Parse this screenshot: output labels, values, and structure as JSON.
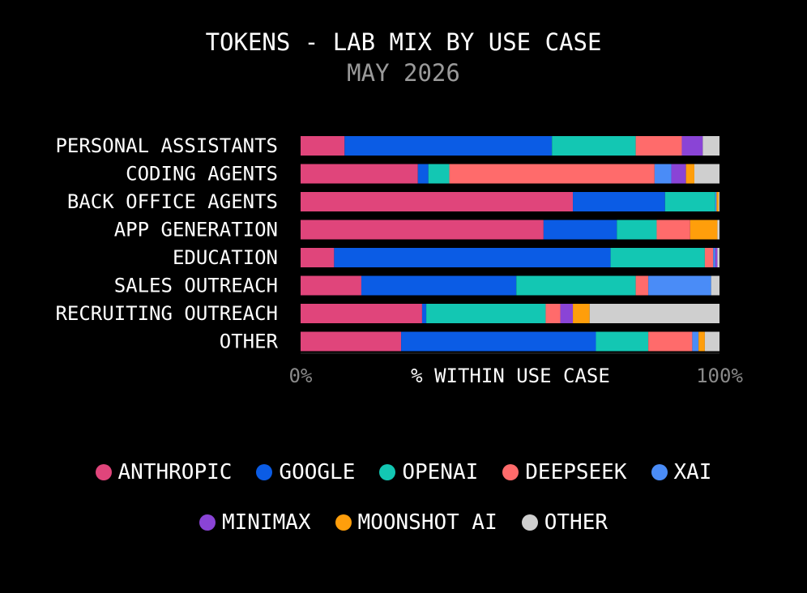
{
  "chart_data": {
    "type": "bar",
    "orientation": "horizontal",
    "stacked": true,
    "normalized": true,
    "title": "TOKENS - LAB MIX BY USE CASE",
    "subtitle": "MAY 2026",
    "xlabel": "% WITHIN USE CASE",
    "xlim": [
      0,
      100
    ],
    "x_ticks": [
      "0%",
      "100%"
    ],
    "categories": [
      "PERSONAL ASSISTANTS",
      "CODING AGENTS",
      "BACK OFFICE AGENTS",
      "APP GENERATION",
      "EDUCATION",
      "SALES OUTREACH",
      "RECRUITING OUTREACH",
      "OTHER"
    ],
    "series": [
      {
        "name": "ANTHROPIC",
        "color": "#e0457b",
        "values": [
          10.5,
          28.0,
          65.0,
          58.0,
          8.0,
          14.5,
          29.0,
          24.0
        ]
      },
      {
        "name": "GOOGLE",
        "color": "#0b5ce5",
        "values": [
          49.5,
          2.5,
          22.0,
          17.5,
          66.0,
          37.0,
          1.0,
          46.5
        ]
      },
      {
        "name": "OPENAI",
        "color": "#13c7b3",
        "values": [
          20.0,
          5.0,
          12.0,
          9.5,
          22.5,
          28.5,
          28.5,
          12.5
        ]
      },
      {
        "name": "DEEPSEEK",
        "color": "#ff6b6b",
        "values": [
          11.0,
          49.0,
          0.0,
          8.0,
          2.0,
          3.0,
          3.5,
          10.5
        ]
      },
      {
        "name": "XAI",
        "color": "#4a8cf7",
        "values": [
          0.0,
          4.0,
          0.3,
          0.0,
          0.5,
          15.0,
          0.0,
          1.5
        ]
      },
      {
        "name": "MINIMAX",
        "color": "#8a44d6",
        "values": [
          5.0,
          3.5,
          0.0,
          0.0,
          0.5,
          0.0,
          3.0,
          0.0
        ]
      },
      {
        "name": "MOONSHOT AI",
        "color": "#ff9e0b",
        "values": [
          0.0,
          2.0,
          0.5,
          6.5,
          0.0,
          0.0,
          4.0,
          1.5
        ]
      },
      {
        "name": "OTHER",
        "color": "#cfcfcf",
        "values": [
          4.0,
          6.0,
          0.2,
          0.5,
          0.5,
          2.0,
          31.0,
          3.5
        ]
      }
    ],
    "legend_position": "bottom",
    "grid": false
  }
}
